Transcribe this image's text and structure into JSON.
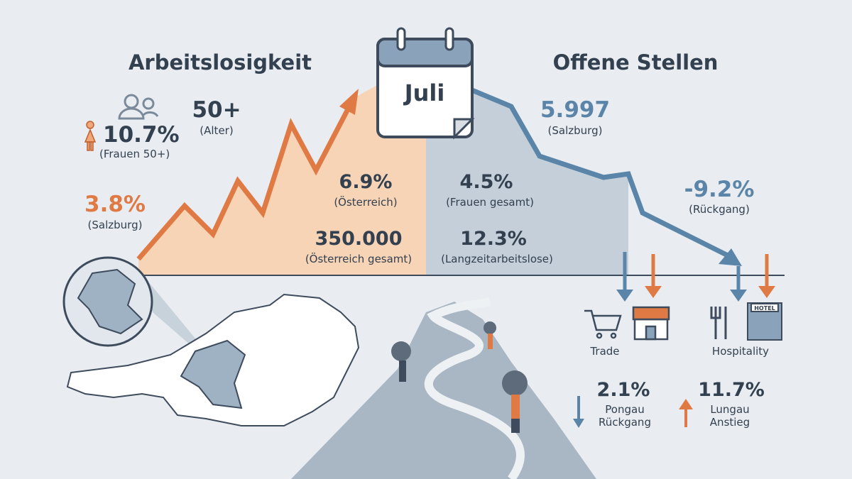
{
  "header": {
    "left_title": "Arbeitslosigkeit",
    "right_title": "Offene Stellen",
    "month": "Juli"
  },
  "left_stats": [
    {
      "value": "50+",
      "label": "(Alter)"
    },
    {
      "value": "10.7%",
      "label": "(Frauen 50+)"
    },
    {
      "value": "3.8%",
      "label": "(Salzburg)"
    },
    {
      "value": "6.9%",
      "label": "(Österreich)"
    },
    {
      "value": "350.000",
      "label": "(Österreich gesamt)"
    }
  ],
  "right_stats": [
    {
      "value": "4.5%",
      "label": "(Frauen gesamt)"
    },
    {
      "value": "12.3%",
      "label": "(Langzeitarbeitslose)"
    },
    {
      "value": "5.997",
      "label": "(Salzburg)"
    },
    {
      "value": "-9.2%",
      "label": "(Rückgang)"
    }
  ],
  "sectors": [
    {
      "label": "Trade"
    },
    {
      "label": "Hospitality",
      "sign": "HOTEL"
    }
  ],
  "regions": [
    {
      "value": "2.1%",
      "region": "Pongau",
      "trend": "Rückgang"
    },
    {
      "value": "11.7%",
      "region": "Lungau",
      "trend": "Anstieg"
    }
  ]
}
